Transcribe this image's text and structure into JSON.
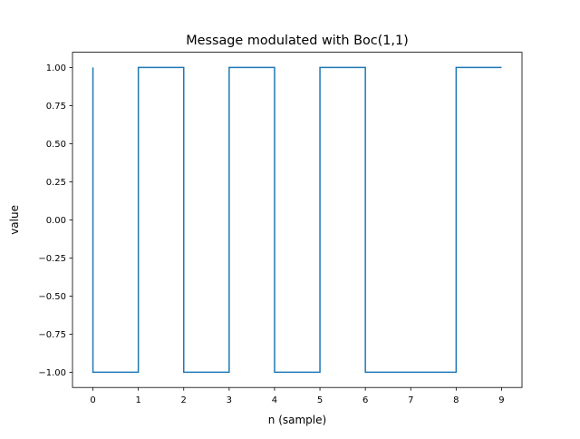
{
  "chart_data": {
    "type": "line",
    "step": "post",
    "title": "Message modulated with Boc(1,1)",
    "xlabel": "n (sample)",
    "ylabel": "value",
    "xlim": [
      -0.45,
      9.45
    ],
    "ylim": [
      -1.1,
      1.1
    ],
    "xticks": [
      0,
      1,
      2,
      3,
      4,
      5,
      6,
      7,
      8,
      9
    ],
    "xtick_labels": [
      "0",
      "1",
      "2",
      "3",
      "4",
      "5",
      "6",
      "7",
      "8",
      "9"
    ],
    "yticks": [
      1.0,
      0.75,
      0.5,
      0.25,
      0.0,
      -0.25,
      -0.5,
      -0.75,
      -1.0
    ],
    "ytick_labels": [
      "1.00",
      "0.75",
      "0.50",
      "0.25",
      "0.00",
      "−0.25",
      "−0.50",
      "−0.75",
      "−1.00"
    ],
    "grid": false,
    "series": [
      {
        "color": "#1f77b4",
        "x": [
          0,
          0,
          1,
          2,
          3,
          4,
          5,
          6,
          7,
          8,
          9
        ],
        "y": [
          1,
          -1,
          1,
          -1,
          1,
          -1,
          1,
          -1,
          -1,
          1,
          1
        ]
      }
    ]
  }
}
